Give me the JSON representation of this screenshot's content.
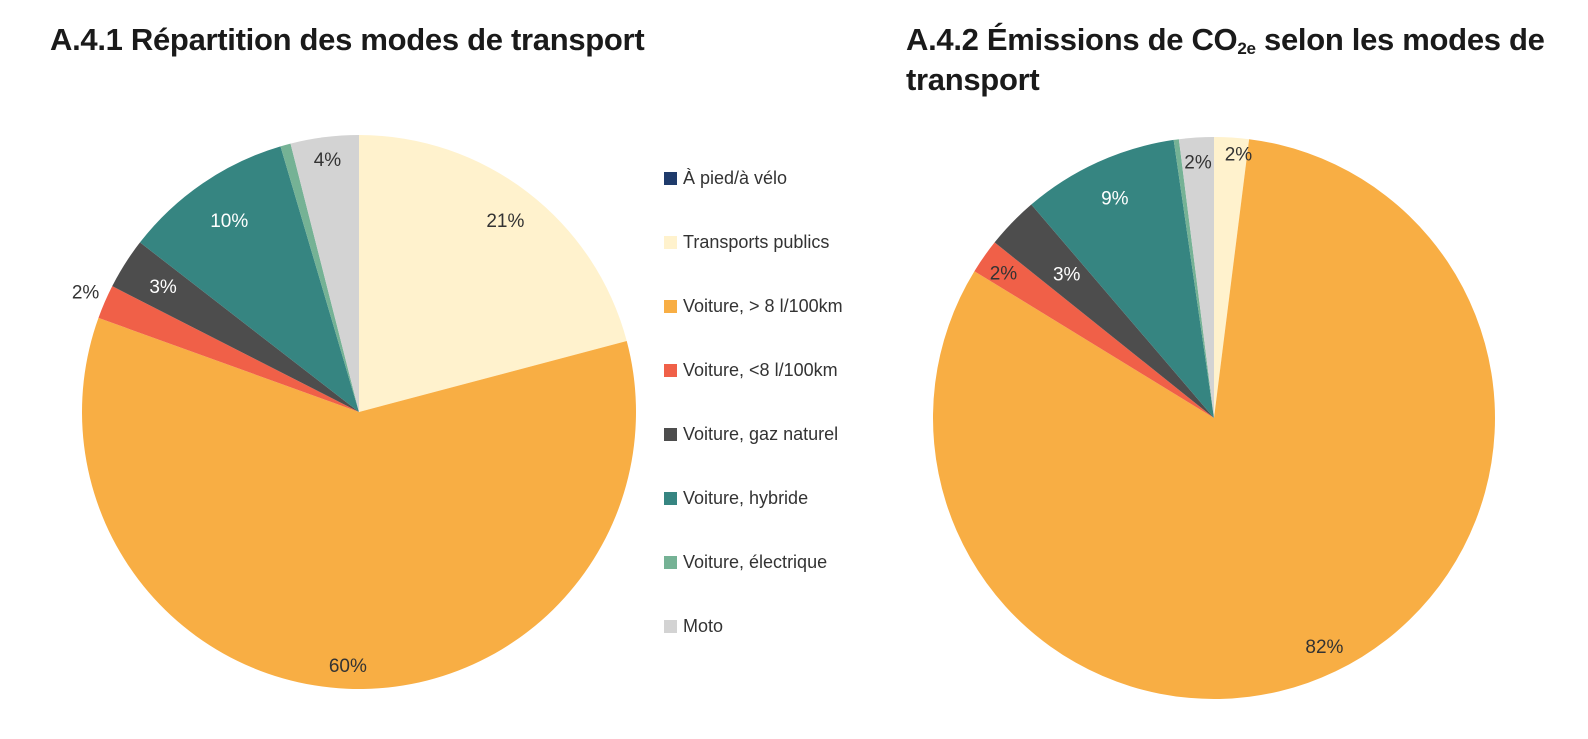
{
  "chart_data": [
    {
      "type": "pie",
      "title": "A.4.1 Répartition des modes de transport",
      "slices": [
        {
          "label": "À pied/à vélo",
          "value": 0,
          "color": "#1f3b6b",
          "display": ""
        },
        {
          "label": "Transports publics",
          "value": 21,
          "color": "#fff2cd",
          "display": "21%"
        },
        {
          "label": "Voiture, > 8 l/100km",
          "value": 60,
          "color": "#f8ae44",
          "display": "60%"
        },
        {
          "label": "Voiture, <8 l/100km",
          "value": 2,
          "color": "#f06048",
          "display": "2%"
        },
        {
          "label": "Voiture, gaz naturel",
          "value": 3,
          "color": "#4d4d4d",
          "display": "3%"
        },
        {
          "label": "Voiture, hybride",
          "value": 10,
          "color": "#368581",
          "display": "10%"
        },
        {
          "label": "Voiture, électrique",
          "value": 0.6,
          "color": "#75b295",
          "display": ""
        },
        {
          "label": "Moto",
          "value": 4,
          "color": "#d3d3d3",
          "display": "4%"
        }
      ]
    },
    {
      "type": "pie",
      "title_parts": {
        "before": "A.4.2 Émissions de CO",
        "subscript": "2e",
        "after": " selon les modes de transport"
      },
      "slices": [
        {
          "label": "À pied/à vélo",
          "value": 0,
          "color": "#1f3b6b",
          "display": ""
        },
        {
          "label": "Transports publics",
          "value": 2,
          "color": "#fff2cd",
          "display": "2%"
        },
        {
          "label": "Voiture, > 8 l/100km",
          "value": 82,
          "color": "#f8ae44",
          "display": "82%"
        },
        {
          "label": "Voiture, <8 l/100km",
          "value": 2,
          "color": "#f06048",
          "display": "2%"
        },
        {
          "label": "Voiture, gaz naturel",
          "value": 3,
          "color": "#4d4d4d",
          "display": "3%"
        },
        {
          "label": "Voiture, hybride",
          "value": 9,
          "color": "#368581",
          "display": "9%"
        },
        {
          "label": "Voiture, électrique",
          "value": 0.3,
          "color": "#75b295",
          "display": ""
        },
        {
          "label": "Moto",
          "value": 2,
          "color": "#d3d3d3",
          "display": "2%"
        }
      ]
    }
  ],
  "legend": {
    "placement": "between charts, right of first pie",
    "items": [
      {
        "label": "À pied/à vélo",
        "color": "#1f3b6b"
      },
      {
        "label": "Transports publics",
        "color": "#fff2cd"
      },
      {
        "label": "Voiture, > 8 l/100km",
        "color": "#f8ae44"
      },
      {
        "label": "Voiture, <8 l/100km",
        "color": "#f06048"
      },
      {
        "label": "Voiture, gaz naturel",
        "color": "#4d4d4d"
      },
      {
        "label": "Voiture, hybride",
        "color": "#368581"
      },
      {
        "label": "Voiture, électrique",
        "color": "#75b295"
      },
      {
        "label": "Moto",
        "color": "#d3d3d3"
      }
    ]
  }
}
